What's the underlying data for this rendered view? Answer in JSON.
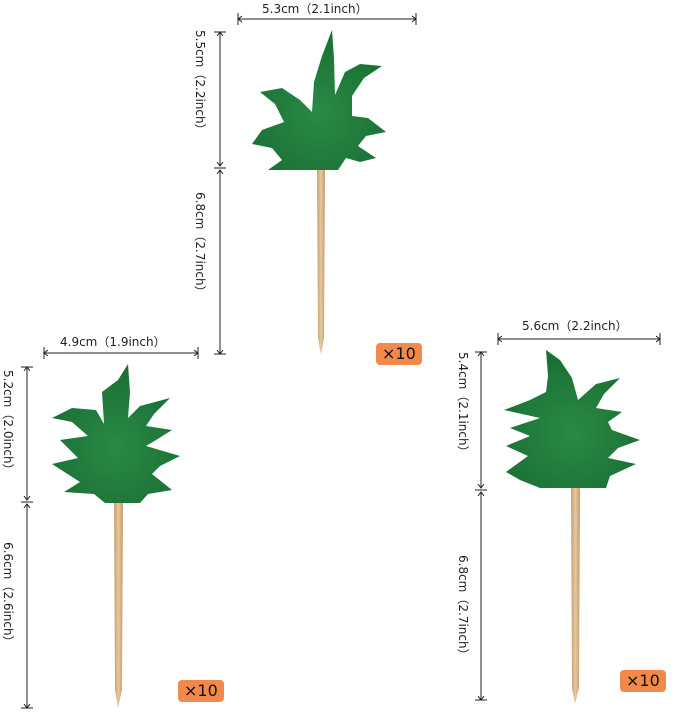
{
  "topper_top": {
    "width": "5.3cm（2.1inch）",
    "leaf_height": "5.5cm（2.2inch）",
    "stick_height": "6.8cm（2.7inch）",
    "quantity": "×10"
  },
  "topper_left": {
    "width": "4.9cm（1.9inch）",
    "leaf_height": "5.2cm（2.0inch）",
    "stick_height": "6.6cm（2.6inch）",
    "quantity": "×10"
  },
  "topper_right": {
    "width": "5.6cm（2.2inch）",
    "leaf_height": "5.4cm（2.1inch）",
    "stick_height": "6.8cm（2.7inch）",
    "quantity": "×10"
  },
  "colors": {
    "leaf": "#1f7a3a",
    "stick": "#d9b68a",
    "badge": "#f0894a"
  }
}
